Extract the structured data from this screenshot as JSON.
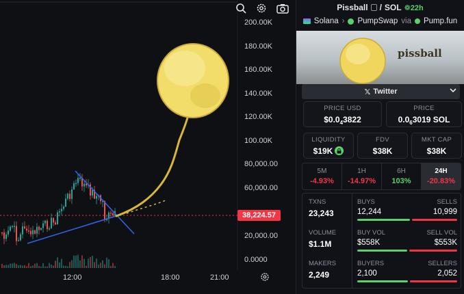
{
  "chart": {
    "y_labels": [
      "200.00K",
      "180.00K",
      "160.00K",
      "140.00K",
      "120.00K",
      "100.00K",
      "80,000.00",
      "60,000.00",
      "40,000.00",
      "20,000.00",
      "0.0000"
    ],
    "x_labels": [
      "12:00",
      "18:00",
      "21:00"
    ],
    "current_price": "38,224.57",
    "colors": {
      "up": "#26a69a",
      "down": "#ef5350",
      "trend": "#2f63e8",
      "price_line": "#f23645"
    }
  },
  "chart_data": {
    "type": "candlestick",
    "x_ticks": [
      "12:00",
      "18:00",
      "21:00"
    ],
    "y_ticks": [
      "0.0000",
      "20,000.00",
      "40,000.00",
      "60,000.00",
      "80,000.00",
      "100.00K",
      "120.00K",
      "140.00K",
      "160.00K",
      "180.00K",
      "200.00K"
    ],
    "ylim": [
      0,
      200000
    ],
    "last_price": 38224.57
  },
  "toolbar": {
    "icons": [
      "magnet-icon",
      "settings-icon",
      "camera-icon"
    ]
  },
  "token": {
    "name": "Pissball",
    "quote": "SOL",
    "age": "22h",
    "chain": "Solana",
    "dex": "PumpSwap",
    "via_label": "via",
    "via": "Pump.fun",
    "banner_text": "pissball"
  },
  "twitter": {
    "label": "Twitter"
  },
  "cards": {
    "price_usd": {
      "label": "PRICE USD",
      "prefix": "$0.0",
      "sub": "4",
      "rest": "3822"
    },
    "price_sol": {
      "label": "PRICE",
      "prefix": "0.0",
      "sub": "6",
      "rest": "3019 SOL"
    },
    "liquidity": {
      "label": "LIQUIDITY",
      "value": "$19K"
    },
    "fdv": {
      "label": "FDV",
      "value": "$38K"
    },
    "mkt_cap": {
      "label": "MKT CAP",
      "value": "$38K"
    }
  },
  "timeframes": [
    {
      "label": "5M",
      "value": "-4.93%"
    },
    {
      "label": "1H",
      "value": "-14.97%"
    },
    {
      "label": "6H",
      "value": "103%"
    },
    {
      "label": "24H",
      "value": "-20.83%"
    }
  ],
  "stats": {
    "txns": {
      "label": "TXNS",
      "value": "23,243"
    },
    "volume": {
      "label": "VOLUME",
      "value": "$1.1M"
    },
    "makers": {
      "label": "MAKERS",
      "value": "2,249"
    },
    "buys": {
      "label": "BUYS",
      "value": "12,244"
    },
    "sells": {
      "label": "SELLS",
      "value": "10,999"
    },
    "buy_vol": {
      "label": "BUY VOL",
      "value": "$558K"
    },
    "sell_vol": {
      "label": "SELL VOL",
      "value": "$553K"
    },
    "buyers": {
      "label": "BUYERS",
      "value": "2,100"
    },
    "sellers": {
      "label": "SELLERS",
      "value": "2,052"
    },
    "ratios": {
      "buys": 0.527,
      "vol": 0.502,
      "buyers": 0.506
    }
  }
}
